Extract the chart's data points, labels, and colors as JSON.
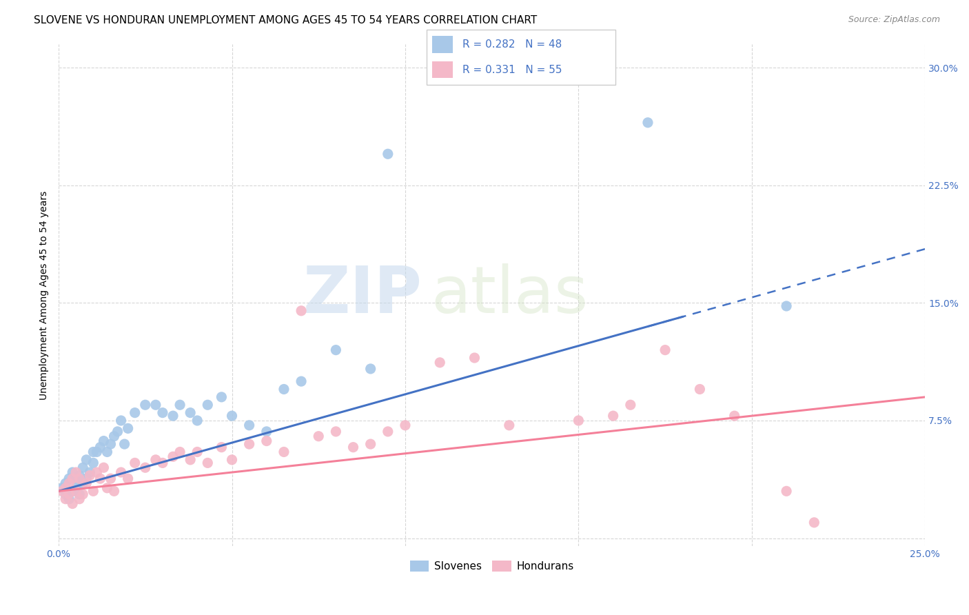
{
  "title": "SLOVENE VS HONDURAN UNEMPLOYMENT AMONG AGES 45 TO 54 YEARS CORRELATION CHART",
  "source": "Source: ZipAtlas.com",
  "ylabel": "Unemployment Among Ages 45 to 54 years",
  "xlim": [
    0.0,
    0.25
  ],
  "ylim": [
    -0.005,
    0.315
  ],
  "xticks": [
    0.0,
    0.05,
    0.1,
    0.15,
    0.2,
    0.25
  ],
  "xticklabels": [
    "0.0%",
    "",
    "",
    "",
    "",
    "25.0%"
  ],
  "yticks": [
    0.0,
    0.075,
    0.15,
    0.225,
    0.3
  ],
  "yticklabels": [
    "",
    "7.5%",
    "15.0%",
    "22.5%",
    "30.0%"
  ],
  "slovene_color": "#a8c8e8",
  "honduran_color": "#f4b8c8",
  "slovene_line_color": "#4472c4",
  "honduran_line_color": "#f48099",
  "watermark_zip": "ZIP",
  "watermark_atlas": "atlas",
  "background_color": "#ffffff",
  "grid_color": "#cccccc",
  "tick_color": "#4472c4",
  "slovene_x": [
    0.001,
    0.002,
    0.002,
    0.003,
    0.003,
    0.004,
    0.004,
    0.005,
    0.005,
    0.006,
    0.006,
    0.007,
    0.007,
    0.008,
    0.008,
    0.009,
    0.01,
    0.01,
    0.011,
    0.012,
    0.013,
    0.014,
    0.015,
    0.016,
    0.017,
    0.018,
    0.019,
    0.02,
    0.022,
    0.025,
    0.028,
    0.03,
    0.033,
    0.035,
    0.038,
    0.04,
    0.043,
    0.047,
    0.05,
    0.055,
    0.06,
    0.065,
    0.07,
    0.08,
    0.09,
    0.095,
    0.17,
    0.21
  ],
  "slovene_y": [
    0.032,
    0.028,
    0.035,
    0.025,
    0.038,
    0.03,
    0.042,
    0.032,
    0.038,
    0.028,
    0.04,
    0.035,
    0.045,
    0.038,
    0.05,
    0.042,
    0.048,
    0.055,
    0.055,
    0.058,
    0.062,
    0.055,
    0.06,
    0.065,
    0.068,
    0.075,
    0.06,
    0.07,
    0.08,
    0.085,
    0.085,
    0.08,
    0.078,
    0.085,
    0.08,
    0.075,
    0.085,
    0.09,
    0.078,
    0.072,
    0.068,
    0.095,
    0.1,
    0.12,
    0.108,
    0.245,
    0.265,
    0.148
  ],
  "honduran_x": [
    0.001,
    0.002,
    0.002,
    0.003,
    0.003,
    0.004,
    0.004,
    0.005,
    0.005,
    0.006,
    0.006,
    0.007,
    0.008,
    0.009,
    0.01,
    0.011,
    0.012,
    0.013,
    0.014,
    0.015,
    0.016,
    0.018,
    0.02,
    0.022,
    0.025,
    0.028,
    0.03,
    0.033,
    0.035,
    0.038,
    0.04,
    0.043,
    0.047,
    0.05,
    0.055,
    0.06,
    0.065,
    0.07,
    0.075,
    0.08,
    0.085,
    0.09,
    0.095,
    0.1,
    0.11,
    0.12,
    0.13,
    0.15,
    0.16,
    0.165,
    0.175,
    0.185,
    0.195,
    0.21,
    0.218
  ],
  "honduran_y": [
    0.03,
    0.025,
    0.032,
    0.028,
    0.035,
    0.022,
    0.038,
    0.03,
    0.042,
    0.025,
    0.038,
    0.028,
    0.035,
    0.04,
    0.03,
    0.042,
    0.038,
    0.045,
    0.032,
    0.038,
    0.03,
    0.042,
    0.038,
    0.048,
    0.045,
    0.05,
    0.048,
    0.052,
    0.055,
    0.05,
    0.055,
    0.048,
    0.058,
    0.05,
    0.06,
    0.062,
    0.055,
    0.145,
    0.065,
    0.068,
    0.058,
    0.06,
    0.068,
    0.072,
    0.112,
    0.115,
    0.072,
    0.075,
    0.078,
    0.085,
    0.12,
    0.095,
    0.078,
    0.03,
    0.01
  ],
  "title_fontsize": 11,
  "axis_label_fontsize": 10,
  "tick_fontsize": 10,
  "legend_fontsize": 11,
  "source_fontsize": 9
}
